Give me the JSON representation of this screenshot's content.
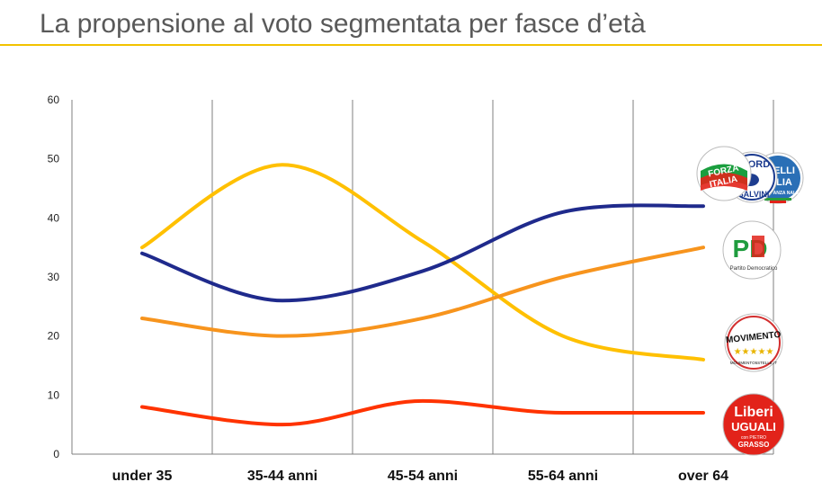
{
  "title": "La propensione al voto segmentata per fasce d’età",
  "colors": {
    "rule": "#f2c200",
    "grid": "#7f7f7f"
  },
  "chart_data": {
    "type": "line",
    "title": "La propensione al voto segmentata per fasce d’età",
    "xlabel": "",
    "ylabel": "",
    "categories": [
      "under 35",
      "35-44 anni",
      "45-54 anni",
      "55-64 anni",
      "over 64"
    ],
    "ylim": [
      0,
      60
    ],
    "yticks": [
      0,
      10,
      20,
      30,
      40,
      50,
      60
    ],
    "grid": "vertical",
    "legend": "party logos at right end of lines",
    "series": [
      {
        "color": "#ffc000",
        "logo": "movimento-5-stelle-logo",
        "values": [
          35,
          49,
          36,
          20,
          16
        ]
      },
      {
        "color": "#1f2a8c",
        "logo": "centrodestra-logos",
        "values": [
          34,
          26,
          31,
          41,
          42
        ]
      },
      {
        "color": "#f7941d",
        "logo": "partito-democratico-logo",
        "values": [
          23,
          20,
          23,
          30,
          35
        ]
      },
      {
        "color": "#ff3300",
        "logo": "liberi-e-uguali-logo",
        "values": [
          8,
          5,
          9,
          7,
          7
        ]
      }
    ]
  },
  "logos": {
    "forza_italia": {
      "line1": "FORZA",
      "line2": "ITALIA"
    },
    "lega": {
      "top": "NORD",
      "bottom": "SALVINI"
    },
    "fdi": {
      "line1": "ELLI",
      "line2": "LIA",
      "small": "ANZA NALE"
    },
    "pd": {
      "mark": "PD",
      "caption": "Partito Democratico"
    },
    "m5s": {
      "name": "MOVIMENTO",
      "stars": "★★★★★",
      "url": "MOVIMENTO5STELLE.IT"
    },
    "leu": {
      "line1": "Liberi",
      "line2": "UGUALI",
      "small": "con PIETRO",
      "name": "GRASSO"
    }
  }
}
